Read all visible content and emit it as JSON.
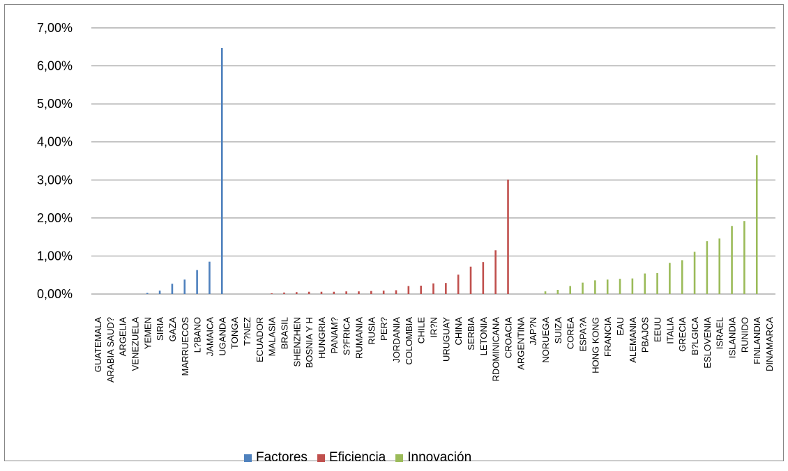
{
  "chart_data": {
    "type": "bar",
    "title": "",
    "xlabel": "",
    "ylabel": "",
    "ylim": [
      0,
      7
    ],
    "yticks": [
      "0,00%",
      "1,00%",
      "2,00%",
      "3,00%",
      "4,00%",
      "5,00%",
      "6,00%",
      "7,00%"
    ],
    "grid": true,
    "legend_position": "bottom",
    "categories": [
      "GUATEMALA",
      "ARABIA SAUD?",
      "ARGELIA",
      "VENEZUELA",
      "YEMEN",
      "SIRIA",
      "GAZA",
      "MARRUECOS",
      "L?BANO",
      "JAMAICA",
      "UGANDA",
      "TONGA",
      "T?NEZ",
      "ECUADOR",
      "MALASIA",
      "BRASIL",
      "SHENZHEN",
      "BOSNIA Y H",
      "HUNGRIA",
      "PANAM?",
      "S?FRICA",
      "RUMANIA",
      "RUSIA",
      "PER?",
      "JORDANIA",
      "COLOMBIA",
      "CHILE",
      "IR?N",
      "URUGUAY",
      "CHINA",
      "SERBIA",
      "LETONIA",
      "RDOMINICANA",
      "CROACIA",
      "ARGENTINA",
      "JAP?N",
      "NORUEGA",
      "SUIZA",
      "COREA",
      "ESPA?A",
      "HONG KONG",
      "FRANCIA",
      "EAU",
      "ALEMANIA",
      "PBAJOS",
      "EEUU",
      "ITALIA",
      "GRECIA",
      "B?LGICA",
      "ESLOVENIA",
      "ISRAEL",
      "ISLANDIA",
      "RUNIDO",
      "FINLANDIA",
      "DINAMARCA"
    ],
    "series": [
      {
        "name": "Factores",
        "color": "#4f81bd",
        "values": [
          0,
          0,
          0,
          0,
          0.03,
          0.09,
          0.27,
          0.38,
          0.63,
          0.85,
          6.47,
          null,
          null,
          null,
          null,
          null,
          null,
          null,
          null,
          null,
          null,
          null,
          null,
          null,
          null,
          null,
          null,
          null,
          null,
          null,
          null,
          null,
          null,
          null,
          null,
          null,
          null,
          null,
          null,
          null,
          null,
          null,
          null,
          null,
          null,
          null,
          null,
          null,
          null,
          null,
          null,
          null,
          null,
          null,
          null
        ]
      },
      {
        "name": "Eficiencia",
        "color": "#c0504d",
        "values": [
          null,
          null,
          null,
          null,
          null,
          null,
          null,
          null,
          null,
          null,
          null,
          0,
          0,
          0,
          0.02,
          0.04,
          0.05,
          0.06,
          0.06,
          0.06,
          0.07,
          0.07,
          0.08,
          0.09,
          0.1,
          0.21,
          0.22,
          0.28,
          0.29,
          0.51,
          0.72,
          0.84,
          1.15,
          3.01,
          null,
          null,
          null,
          null,
          null,
          null,
          null,
          null,
          null,
          null,
          null,
          null,
          null,
          null,
          null,
          null,
          null,
          null,
          null,
          null,
          null
        ]
      },
      {
        "name": "Innovación",
        "color": "#9bbb59",
        "values": [
          null,
          null,
          null,
          null,
          null,
          null,
          null,
          null,
          null,
          null,
          null,
          null,
          null,
          null,
          null,
          null,
          null,
          null,
          null,
          null,
          null,
          null,
          null,
          null,
          null,
          null,
          null,
          null,
          null,
          null,
          null,
          null,
          null,
          null,
          0,
          0,
          0.07,
          0.11,
          0.21,
          0.3,
          0.36,
          0.38,
          0.4,
          0.41,
          0.54,
          0.55,
          0.82,
          0.89,
          1.11,
          1.39,
          1.46,
          1.79,
          1.92,
          3.65,
          null
        ]
      }
    ]
  }
}
